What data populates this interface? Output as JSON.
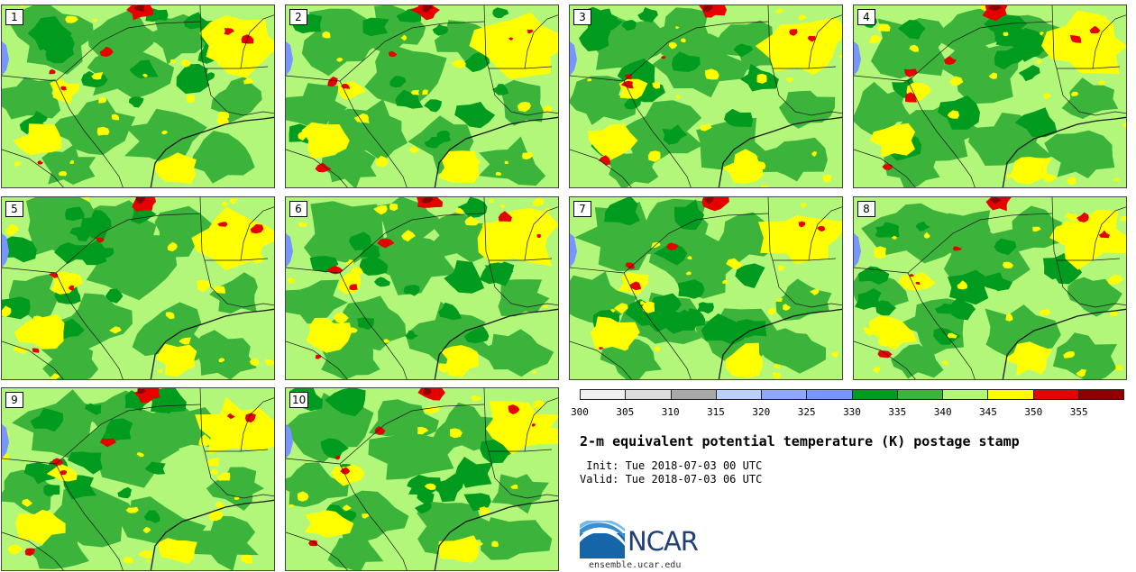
{
  "panels": [
    {
      "label": "1"
    },
    {
      "label": "2"
    },
    {
      "label": "3"
    },
    {
      "label": "4"
    },
    {
      "label": "5"
    },
    {
      "label": "6"
    },
    {
      "label": "7"
    },
    {
      "label": "8"
    },
    {
      "label": "9"
    },
    {
      "label": "10"
    }
  ],
  "colorbar": {
    "colors": [
      "#f0f0f0",
      "#dcdcdc",
      "#a8a8a8",
      "#bcd0ff",
      "#8ea8ff",
      "#7896ff",
      "#009b1f",
      "#3cb43c",
      "#b3f77a",
      "#ffff00",
      "#e60000",
      "#8c0000"
    ],
    "ticks": [
      "300",
      "305",
      "310",
      "315",
      "320",
      "325",
      "330",
      "335",
      "340",
      "345",
      "350",
      "355"
    ]
  },
  "title": "2-m equivalent potential temperature (K) postage stamp",
  "init": " Init: Tue 2018-07-03 00 UTC",
  "valid": "Valid: Tue 2018-07-03 06 UTC",
  "logo": {
    "text": "NCAR",
    "url": "ensemble.ucar.edu"
  },
  "map_colors": {
    "light_green": "#b3f77a",
    "mid_green": "#3cb43c",
    "dark_green": "#009b1f",
    "yellow": "#ffff00",
    "red": "#e60000",
    "dark_red": "#8c0000",
    "water": "#7896ff",
    "border": "#1a1a1a"
  }
}
